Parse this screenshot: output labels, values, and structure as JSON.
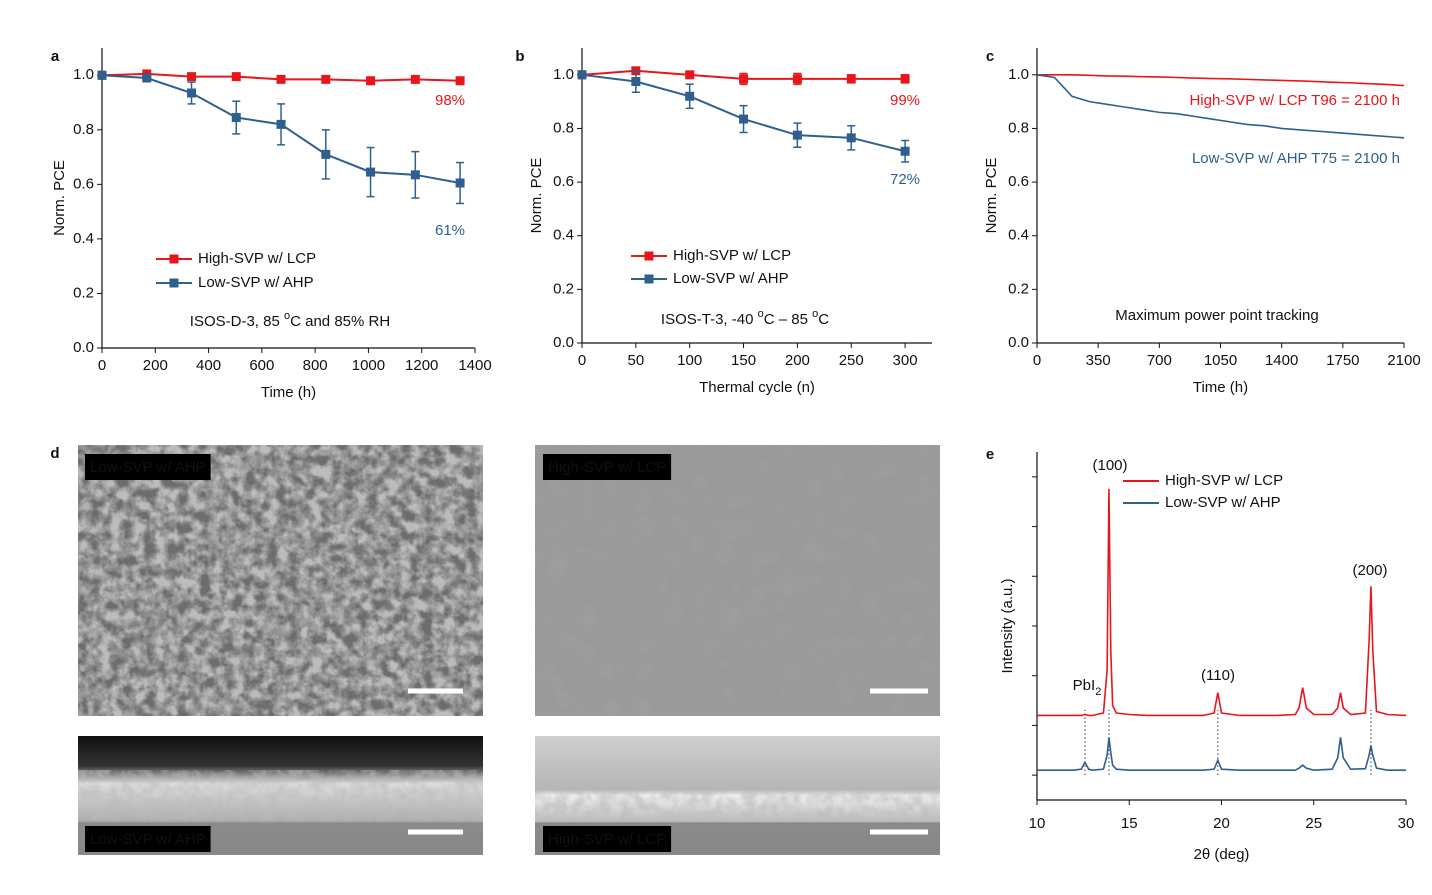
{
  "chart_data": [
    {
      "type": "line",
      "panel": "a",
      "x_label": "Time (h)",
      "y_label": "Norm. PCE",
      "x": [
        0,
        168,
        336,
        504,
        672,
        840,
        1008,
        1176,
        1344
      ],
      "series": [
        {
          "name": "High-SVP w/ LCP",
          "color": "#e8161b",
          "values": [
            1.0,
            1.005,
            0.995,
            0.995,
            0.985,
            0.985,
            0.98,
            0.985,
            0.98
          ],
          "errors": [
            0,
            0.01,
            0.008,
            0.008,
            0.006,
            0.006,
            0.008,
            0.006,
            0.006
          ]
        },
        {
          "name": "Low-SVP w/ AHP",
          "color": "#2e5f8e",
          "values": [
            1.0,
            0.99,
            0.935,
            0.845,
            0.82,
            0.71,
            0.645,
            0.635,
            0.605
          ],
          "errors": [
            0,
            0.01,
            0.04,
            0.06,
            0.075,
            0.09,
            0.09,
            0.085,
            0.075
          ]
        }
      ],
      "markers": true,
      "legend": true,
      "xlim": [
        0,
        1400
      ],
      "xticks": [
        0,
        200,
        400,
        600,
        800,
        1000,
        1200,
        1400
      ],
      "ylim": [
        0,
        1.1
      ],
      "yticks": [
        {
          "value": 0,
          "label": "0.0"
        },
        {
          "value": 0.2,
          "label": "0.2"
        },
        {
          "value": 0.4,
          "label": "0.4"
        },
        {
          "value": 0.6,
          "label": "0.6"
        },
        {
          "value": 0.8,
          "label": "0.8"
        },
        {
          "value": 1.0,
          "label": "1.0"
        }
      ],
      "annotations": [
        {
          "parts": [
            "98%"
          ]
        },
        {
          "parts": [
            "61%"
          ]
        },
        {
          "parts": [
            "ISOS-D-3, 85 ",
            "o",
            "C and 85% RH"
          ],
          "shift": "super"
        }
      ]
    },
    {
      "type": "line",
      "panel": "b",
      "x_label": "Thermal cycle (n)",
      "y_label": "Norm. PCE",
      "x": [
        0,
        50,
        100,
        150,
        200,
        250,
        300
      ],
      "series": [
        {
          "name": "High-SVP w/ LCP",
          "color": "#e8161b",
          "values": [
            1.0,
            1.015,
            1.0,
            0.985,
            0.985,
            0.985,
            0.985
          ],
          "errors": [
            0,
            0.01,
            0.01,
            0.02,
            0.02,
            0.015,
            0.015
          ]
        },
        {
          "name": "Low-SVP w/ AHP",
          "color": "#2e5f8e",
          "values": [
            1.0,
            0.975,
            0.92,
            0.835,
            0.775,
            0.765,
            0.715
          ],
          "errors": [
            0,
            0.04,
            0.045,
            0.05,
            0.045,
            0.045,
            0.04
          ]
        }
      ],
      "markers": true,
      "legend": true,
      "xlim": [
        0,
        325
      ],
      "xticks": [
        0,
        50,
        100,
        150,
        200,
        250,
        300
      ],
      "ylim": [
        0,
        1.1
      ],
      "yticks": [
        {
          "value": 0,
          "label": "0.0"
        },
        {
          "value": 0.2,
          "label": "0.2"
        },
        {
          "value": 0.4,
          "label": "0.4"
        },
        {
          "value": 0.6,
          "label": "0.6"
        },
        {
          "value": 0.8,
          "label": "0.8"
        },
        {
          "value": 1.0,
          "label": "1.0"
        }
      ],
      "annotations": [
        {
          "parts": [
            "99%"
          ]
        },
        {
          "parts": [
            "72%"
          ]
        },
        {
          "parts": [
            "ISOS-T-3, -40 ",
            "o",
            "C – 85 ",
            "o",
            "C"
          ],
          "shift": "super"
        }
      ]
    },
    {
      "type": "line",
      "panel": "c",
      "x_label": "Time (h)",
      "y_label": "Norm. PCE",
      "x": [
        0,
        100,
        200,
        300,
        400,
        500,
        600,
        700,
        800,
        900,
        1000,
        1100,
        1200,
        1300,
        1400,
        1500,
        1600,
        1700,
        1800,
        1900,
        2000,
        2100
      ],
      "series": [
        {
          "color": "#e8161b",
          "values": [
            1.0,
            1.0,
            1.0,
            0.998,
            0.996,
            0.995,
            0.993,
            0.992,
            0.99,
            0.988,
            0.986,
            0.985,
            0.983,
            0.981,
            0.979,
            0.977,
            0.975,
            0.972,
            0.97,
            0.967,
            0.964,
            0.96
          ]
        },
        {
          "color": "#2e5f8e",
          "values": [
            1.0,
            0.99,
            0.92,
            0.9,
            0.89,
            0.88,
            0.87,
            0.86,
            0.855,
            0.845,
            0.835,
            0.825,
            0.815,
            0.81,
            0.8,
            0.795,
            0.79,
            0.785,
            0.78,
            0.775,
            0.77,
            0.765
          ]
        }
      ],
      "markers": false,
      "legend": false,
      "xlim": [
        0,
        2100
      ],
      "xticks": [
        0,
        350,
        700,
        1050,
        1400,
        1750,
        2100
      ],
      "ylim": [
        0,
        1.1
      ],
      "yticks": [
        {
          "value": 0,
          "label": "0.0"
        },
        {
          "value": 0.2,
          "label": "0.2"
        },
        {
          "value": 0.4,
          "label": "0.4"
        },
        {
          "value": 0.6,
          "label": "0.6"
        },
        {
          "value": 0.8,
          "label": "0.8"
        },
        {
          "value": 1.0,
          "label": "1.0"
        }
      ],
      "annotations": [
        {
          "parts": [
            "High-SVP w/ LCP T96 = 2100 h"
          ]
        },
        {
          "parts": [
            "Low-SVP w/ AHP T75 = 2100 h"
          ]
        },
        {
          "parts": [
            "Maximum power point tracking"
          ]
        }
      ]
    },
    {
      "type": "line",
      "panel": "e",
      "x_label": "2θ (deg)",
      "y_label": "Intensity (a.u.)",
      "x": [
        10,
        11,
        12,
        12.4,
        12.6,
        12.8,
        13,
        13.6,
        13.8,
        13.9,
        14.0,
        14.1,
        14.3,
        15,
        16,
        17,
        18,
        19,
        19.6,
        19.8,
        20.0,
        21,
        22,
        23,
        24,
        24.2,
        24.4,
        24.6,
        25,
        26,
        26.3,
        26.45,
        26.6,
        27,
        27.8,
        28.0,
        28.1,
        28.2,
        28.4,
        29,
        30
      ],
      "series": [
        {
          "name": "High-SVP w/ LCP",
          "color": "#e8161b",
          "values": [
            1.7,
            1.7,
            1.7,
            1.7,
            1.72,
            1.7,
            1.7,
            1.75,
            2.6,
            6.26,
            3.0,
            1.9,
            1.75,
            1.72,
            1.7,
            1.7,
            1.7,
            1.7,
            1.75,
            2.16,
            1.75,
            1.7,
            1.7,
            1.7,
            1.72,
            1.85,
            2.26,
            1.85,
            1.72,
            1.72,
            1.85,
            2.16,
            1.85,
            1.72,
            1.75,
            3.2,
            4.3,
            3.0,
            1.78,
            1.72,
            1.7
          ]
        },
        {
          "name": "Low-SVP w/ AHP",
          "color": "#2e5f8e",
          "values": [
            0.6,
            0.6,
            0.6,
            0.62,
            0.76,
            0.62,
            0.6,
            0.62,
            0.9,
            1.26,
            0.95,
            0.7,
            0.62,
            0.6,
            0.6,
            0.6,
            0.6,
            0.6,
            0.62,
            0.8,
            0.62,
            0.6,
            0.6,
            0.6,
            0.6,
            0.64,
            0.7,
            0.64,
            0.6,
            0.62,
            0.85,
            1.26,
            0.85,
            0.62,
            0.63,
            0.9,
            1.1,
            0.9,
            0.64,
            0.6,
            0.6
          ]
        }
      ],
      "markers": false,
      "legend": true,
      "yticklabels": false,
      "xlim": [
        10,
        30
      ],
      "xticks": [
        10,
        15,
        20,
        25,
        30
      ],
      "ylim": [
        0,
        7
      ],
      "yticks": [
        0.5,
        1.5,
        2.5,
        3.5,
        4.5,
        5.5,
        6.5
      ],
      "vlines": [
        12.6,
        13.9,
        19.8,
        28.1
      ],
      "annotations": [
        {
          "parts": [
            "(100)"
          ]
        },
        {
          "parts": [
            "PbI",
            "2"
          ],
          "shift": "sub"
        },
        {
          "parts": [
            "(110)"
          ]
        },
        {
          "parts": [
            "(200)"
          ]
        }
      ]
    }
  ],
  "panel_d": {
    "panel": "d",
    "images": [
      {
        "label": "Low-SVP w/ AHP"
      },
      {
        "label": "High-SVP w/ LCP"
      },
      {
        "label": "Low-SVP w/ AHP"
      },
      {
        "label": "High-SVP w/ LCP"
      }
    ]
  }
}
